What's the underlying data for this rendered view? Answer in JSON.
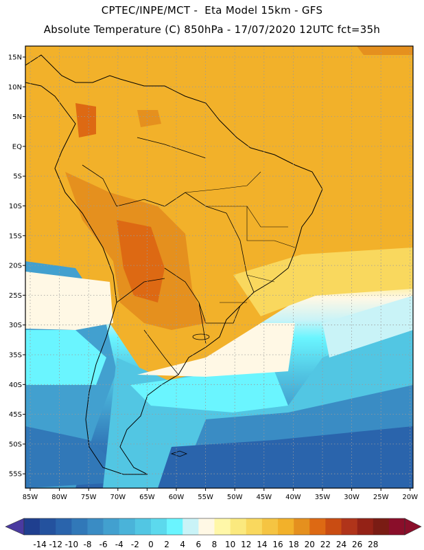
{
  "header": {
    "title_line1": "CPTEC/INPE/MCT -  Eta Model 15km - GFS",
    "title_line2": "Absolute Temperature (C) 850hPa - 17/07/2020 12UTC fct=35h"
  },
  "axes": {
    "lat_labels": [
      "15N",
      "10N",
      "5N",
      "EQ",
      "5S",
      "10S",
      "15S",
      "20S",
      "25S",
      "30S",
      "35S",
      "40S",
      "45S",
      "50S",
      "55S"
    ],
    "lon_labels": [
      "85W",
      "80W",
      "75W",
      "70W",
      "65W",
      "60W",
      "55W",
      "50W",
      "45W",
      "40W",
      "35W",
      "30W",
      "25W",
      "20W"
    ]
  },
  "colorbar": {
    "labels": [
      "-14",
      "-12",
      "-10",
      "-8",
      "-6",
      "-4",
      "-2",
      "0",
      "2",
      "4",
      "6",
      "8",
      "10",
      "12",
      "14",
      "16",
      "18",
      "20",
      "22",
      "24",
      "26",
      "28"
    ],
    "colors": [
      "#1f3f8f",
      "#24529e",
      "#2a64ac",
      "#3178b8",
      "#3a8cc4",
      "#42a0cf",
      "#4ab3d9",
      "#52c6e3",
      "#5cd9ed",
      "#6af5ff",
      "#c9f3f7",
      "#fff8e5",
      "#fff7a8",
      "#fbe97e",
      "#f9d85e",
      "#f5c442",
      "#f2b12a",
      "#e5901e",
      "#dd6913",
      "#c94c12",
      "#b0341a",
      "#942216",
      "#7a1c14",
      "#8a0e2a"
    ],
    "low_arrow_color": "#4a3aa0",
    "high_arrow_color": "#8a0e2a"
  },
  "map_colors": {
    "warm_base": "#f2b12a",
    "hot": "#e5901e",
    "very_hot": "#dd6913",
    "yellow": "#f9d85e",
    "pale": "#fff8e5",
    "cyan": "#6af5ff",
    "mid_blue": "#42a0cf",
    "dark_blue": "#2a64ac"
  }
}
